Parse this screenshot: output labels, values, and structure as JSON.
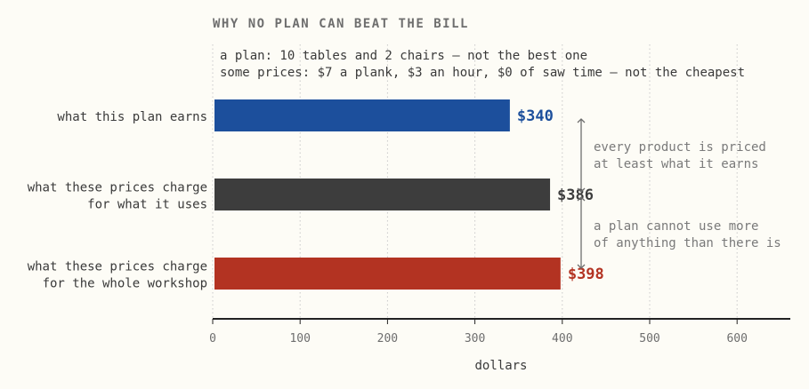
{
  "chart_data": {
    "type": "bar",
    "orientation": "horizontal",
    "title": "WHY NO PLAN CAN BEAT THE BILL",
    "subtitle": [
      "a plan: 10 tables and 2 chairs — not the best one",
      "some prices: $7 a plank, $3 an hour, $0 of saw time — not the cheapest"
    ],
    "categories": [
      [
        "what this plan earns"
      ],
      [
        "what these prices charge",
        "for what it uses"
      ],
      [
        "what these prices charge",
        "for the whole workshop"
      ]
    ],
    "values": [
      340,
      386,
      398
    ],
    "data_labels": [
      "$340",
      "$386",
      "$398"
    ],
    "colors": [
      "#1c4f9c",
      "#3d3d3d",
      "#b33322"
    ],
    "xlabel": "dollars",
    "xlim": [
      0,
      660
    ],
    "xticks": [
      0,
      100,
      200,
      300,
      400,
      500,
      600
    ],
    "grid": true,
    "annotations": [
      {
        "text": [
          "every product is priced",
          "at least what it earns"
        ],
        "from": 340,
        "to": 386
      },
      {
        "text": [
          "a plan cannot use more",
          "of anything than there is"
        ],
        "from": 386,
        "to": 398
      }
    ]
  }
}
